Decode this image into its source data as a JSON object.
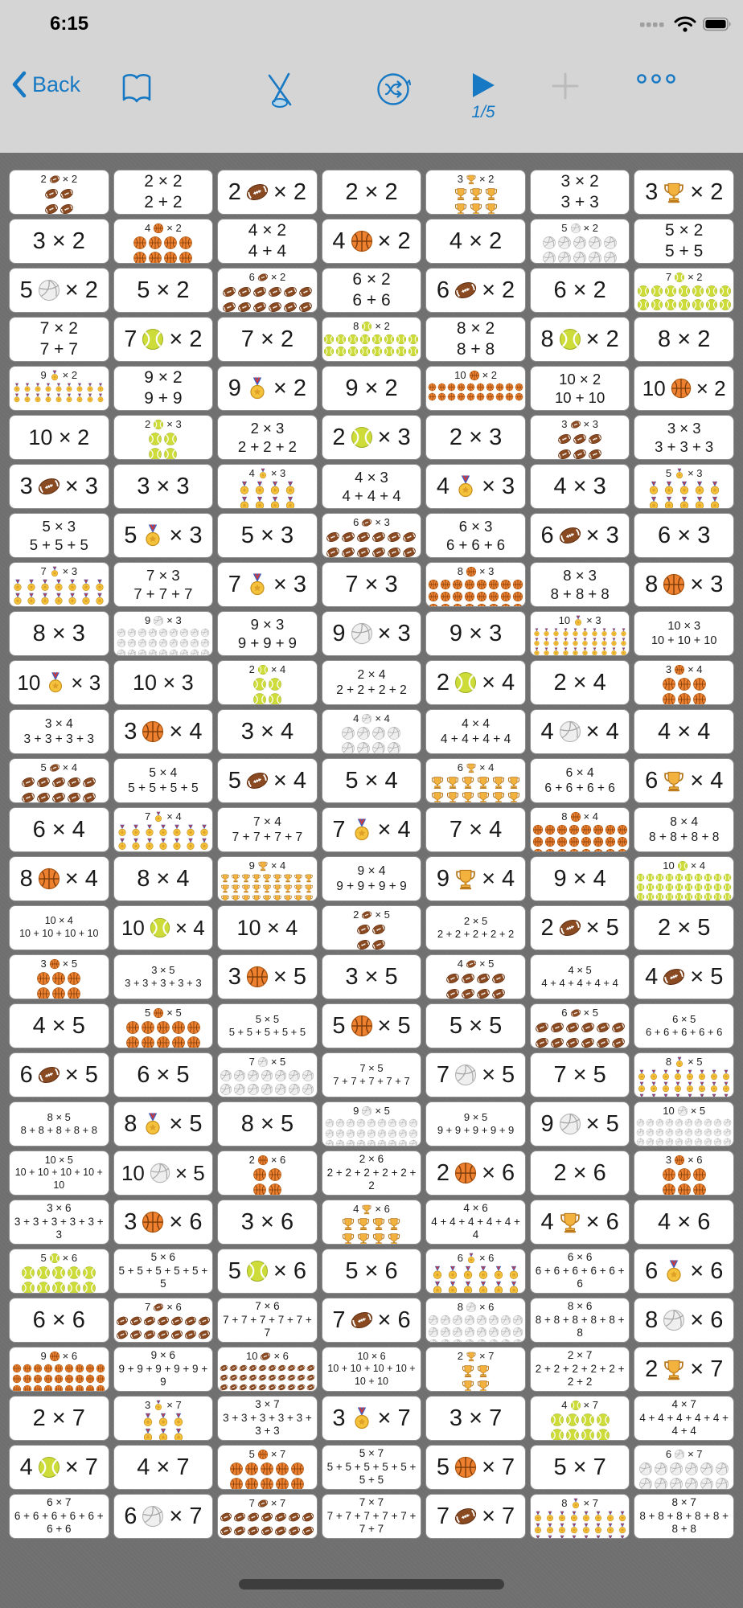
{
  "colors": {
    "accent": "#1779c4",
    "bar_bg": "#d5d5d5",
    "page_bg": "#6f6f6f",
    "card_bg": "#ffffff",
    "disabled": "#bcbcbc"
  },
  "status_bar": {
    "time": "6:15",
    "icons": [
      "cellular-signal",
      "wifi",
      "battery"
    ]
  },
  "toolbar": {
    "back_label": "Back",
    "page_indicator": "1/5",
    "icons": [
      "back-chevron",
      "book",
      "no-draw-pencil",
      "shuffle",
      "play",
      "plus",
      "ellipsis"
    ]
  },
  "grid": {
    "columns": 7,
    "cards": [
      {
        "t": "p",
        "n": "2",
        "x": "× 2",
        "e": "football",
        "c": 2,
        "r": 2
      },
      {
        "t": "a",
        "p": "2 × 2",
        "s": "2 + 2"
      },
      {
        "t": "e",
        "n": "2",
        "x": "× 2",
        "e": "football"
      },
      {
        "t": "n",
        "p": "2 × 2"
      },
      {
        "t": "p",
        "n": "3",
        "x": "× 2",
        "e": "trophy",
        "c": 3,
        "r": 2
      },
      {
        "t": "a",
        "p": "3 × 2",
        "s": "3 + 3"
      },
      {
        "t": "e",
        "n": "3",
        "x": "× 2",
        "e": "trophy"
      },
      {
        "t": "n",
        "p": "3 × 2"
      },
      {
        "t": "p",
        "n": "4",
        "x": "× 2",
        "e": "basketball",
        "c": 4,
        "r": 2
      },
      {
        "t": "a",
        "p": "4 × 2",
        "s": "4 + 4"
      },
      {
        "t": "e",
        "n": "4",
        "x": "× 2",
        "e": "basketball"
      },
      {
        "t": "n",
        "p": "4 × 2"
      },
      {
        "t": "p",
        "n": "5",
        "x": "× 2",
        "e": "volleyball",
        "c": 5,
        "r": 2
      },
      {
        "t": "a",
        "p": "5 × 2",
        "s": "5 + 5"
      },
      {
        "t": "e",
        "n": "5",
        "x": "× 2",
        "e": "volleyball"
      },
      {
        "t": "n",
        "p": "5 × 2"
      },
      {
        "t": "p",
        "n": "6",
        "x": "× 2",
        "e": "football",
        "c": 6,
        "r": 2
      },
      {
        "t": "a",
        "p": "6 × 2",
        "s": "6 + 6"
      },
      {
        "t": "e",
        "n": "6",
        "x": "× 2",
        "e": "football"
      },
      {
        "t": "n",
        "p": "6 × 2"
      },
      {
        "t": "p",
        "n": "7",
        "x": "× 2",
        "e": "tennis",
        "c": 7,
        "r": 2
      },
      {
        "t": "a",
        "p": "7 × 2",
        "s": "7 + 7"
      },
      {
        "t": "e",
        "n": "7",
        "x": "× 2",
        "e": "tennis"
      },
      {
        "t": "n",
        "p": "7 × 2"
      },
      {
        "t": "p",
        "n": "8",
        "x": "× 2",
        "e": "tennis",
        "c": 8,
        "r": 2
      },
      {
        "t": "a",
        "p": "8 × 2",
        "s": "8 + 8"
      },
      {
        "t": "e",
        "n": "8",
        "x": "× 2",
        "e": "tennis"
      },
      {
        "t": "n",
        "p": "8 × 2"
      },
      {
        "t": "p",
        "n": "9",
        "x": "× 2",
        "e": "medal",
        "c": 9,
        "r": 2
      },
      {
        "t": "a",
        "p": "9 × 2",
        "s": "9 + 9"
      },
      {
        "t": "e",
        "n": "9",
        "x": "× 2",
        "e": "medal"
      },
      {
        "t": "n",
        "p": "9 × 2"
      },
      {
        "t": "p",
        "n": "10",
        "x": "× 2",
        "e": "basketball",
        "c": 10,
        "r": 2
      },
      {
        "t": "a",
        "p": "10 × 2",
        "s": "10 + 10"
      },
      {
        "t": "e",
        "n": "10",
        "x": "× 2",
        "e": "basketball"
      },
      {
        "t": "n",
        "p": "10 × 2"
      },
      {
        "t": "p",
        "n": "2",
        "x": "× 3",
        "e": "tennis",
        "c": 2,
        "r": 3
      },
      {
        "t": "a",
        "p": "2 × 3",
        "s": "2 + 2 + 2"
      },
      {
        "t": "e",
        "n": "2",
        "x": "× 3",
        "e": "tennis"
      },
      {
        "t": "n",
        "p": "2 × 3"
      },
      {
        "t": "p",
        "n": "3",
        "x": "× 3",
        "e": "football",
        "c": 3,
        "r": 3
      },
      {
        "t": "a",
        "p": "3 × 3",
        "s": "3 + 3 + 3"
      },
      {
        "t": "e",
        "n": "3",
        "x": "× 3",
        "e": "football"
      },
      {
        "t": "n",
        "p": "3 × 3"
      },
      {
        "t": "p",
        "n": "4",
        "x": "× 3",
        "e": "medal",
        "c": 4,
        "r": 3
      },
      {
        "t": "a",
        "p": "4 × 3",
        "s": "4 + 4 + 4"
      },
      {
        "t": "e",
        "n": "4",
        "x": "× 3",
        "e": "medal"
      },
      {
        "t": "n",
        "p": "4 × 3"
      },
      {
        "t": "p",
        "n": "5",
        "x": "× 3",
        "e": "medal",
        "c": 5,
        "r": 3
      },
      {
        "t": "a",
        "p": "5 × 3",
        "s": "5 + 5 + 5"
      },
      {
        "t": "e",
        "n": "5",
        "x": "× 3",
        "e": "medal"
      },
      {
        "t": "n",
        "p": "5 × 3"
      },
      {
        "t": "p",
        "n": "6",
        "x": "× 3",
        "e": "football",
        "c": 6,
        "r": 3
      },
      {
        "t": "a",
        "p": "6 × 3",
        "s": "6 + 6 + 6"
      },
      {
        "t": "e",
        "n": "6",
        "x": "× 3",
        "e": "football"
      },
      {
        "t": "n",
        "p": "6 × 3"
      },
      {
        "t": "p",
        "n": "7",
        "x": "× 3",
        "e": "medal",
        "c": 7,
        "r": 3
      },
      {
        "t": "a",
        "p": "7 × 3",
        "s": "7 + 7 + 7"
      },
      {
        "t": "e",
        "n": "7",
        "x": "× 3",
        "e": "medal"
      },
      {
        "t": "n",
        "p": "7 × 3"
      },
      {
        "t": "p",
        "n": "8",
        "x": "× 3",
        "e": "basketball",
        "c": 8,
        "r": 3
      },
      {
        "t": "a",
        "p": "8 × 3",
        "s": "8 + 8 + 8"
      },
      {
        "t": "e",
        "n": "8",
        "x": "× 3",
        "e": "basketball"
      },
      {
        "t": "n",
        "p": "8 × 3"
      },
      {
        "t": "p",
        "n": "9",
        "x": "× 3",
        "e": "volleyball",
        "c": 9,
        "r": 3
      },
      {
        "t": "a",
        "p": "9 × 3",
        "s": "9 + 9 + 9"
      },
      {
        "t": "e",
        "n": "9",
        "x": "× 3",
        "e": "volleyball"
      },
      {
        "t": "n",
        "p": "9 × 3"
      },
      {
        "t": "p",
        "n": "10",
        "x": "× 3",
        "e": "medal",
        "c": 10,
        "r": 3
      },
      {
        "t": "a",
        "p": "10 × 3",
        "s": "10 + 10 + 10"
      },
      {
        "t": "e",
        "n": "10",
        "x": "× 3",
        "e": "medal"
      },
      {
        "t": "n",
        "p": "10 × 3"
      },
      {
        "t": "p",
        "n": "2",
        "x": "× 4",
        "e": "tennis",
        "c": 2,
        "r": 4
      },
      {
        "t": "a",
        "p": "2 × 4",
        "s": "2 + 2 + 2 + 2"
      },
      {
        "t": "e",
        "n": "2",
        "x": "× 4",
        "e": "tennis"
      },
      {
        "t": "n",
        "p": "2 × 4"
      },
      {
        "t": "p",
        "n": "3",
        "x": "× 4",
        "e": "basketball",
        "c": 3,
        "r": 4
      },
      {
        "t": "a",
        "p": "3 × 4",
        "s": "3 + 3 + 3 + 3"
      },
      {
        "t": "e",
        "n": "3",
        "x": "× 4",
        "e": "basketball"
      },
      {
        "t": "n",
        "p": "3 × 4"
      },
      {
        "t": "p",
        "n": "4",
        "x": "× 4",
        "e": "volleyball",
        "c": 4,
        "r": 4
      },
      {
        "t": "a",
        "p": "4 × 4",
        "s": "4 + 4 + 4 + 4"
      },
      {
        "t": "e",
        "n": "4",
        "x": "× 4",
        "e": "volleyball"
      },
      {
        "t": "n",
        "p": "4 × 4"
      },
      {
        "t": "p",
        "n": "5",
        "x": "× 4",
        "e": "football",
        "c": 5,
        "r": 4
      },
      {
        "t": "a",
        "p": "5 × 4",
        "s": "5 + 5 + 5 + 5"
      },
      {
        "t": "e",
        "n": "5",
        "x": "× 4",
        "e": "football"
      },
      {
        "t": "n",
        "p": "5 × 4"
      },
      {
        "t": "p",
        "n": "6",
        "x": "× 4",
        "e": "trophy",
        "c": 6,
        "r": 4
      },
      {
        "t": "a",
        "p": "6 × 4",
        "s": "6 + 6 + 6 + 6"
      },
      {
        "t": "e",
        "n": "6",
        "x": "× 4",
        "e": "trophy"
      },
      {
        "t": "n",
        "p": "6 × 4"
      },
      {
        "t": "p",
        "n": "7",
        "x": "× 4",
        "e": "medal",
        "c": 7,
        "r": 4
      },
      {
        "t": "a",
        "p": "7 × 4",
        "s": "7 + 7 + 7 + 7"
      },
      {
        "t": "e",
        "n": "7",
        "x": "× 4",
        "e": "medal"
      },
      {
        "t": "n",
        "p": "7 × 4"
      },
      {
        "t": "p",
        "n": "8",
        "x": "× 4",
        "e": "basketball",
        "c": 8,
        "r": 4
      },
      {
        "t": "a",
        "p": "8 × 4",
        "s": "8 + 8 + 8 + 8"
      },
      {
        "t": "e",
        "n": "8",
        "x": "× 4",
        "e": "basketball"
      },
      {
        "t": "n",
        "p": "8 × 4"
      },
      {
        "t": "p",
        "n": "9",
        "x": "× 4",
        "e": "trophy",
        "c": 9,
        "r": 4
      },
      {
        "t": "a",
        "p": "9 × 4",
        "s": "9 + 9 + 9 + 9"
      },
      {
        "t": "e",
        "n": "9",
        "x": "× 4",
        "e": "trophy"
      },
      {
        "t": "n",
        "p": "9 × 4"
      },
      {
        "t": "p",
        "n": "10",
        "x": "× 4",
        "e": "tennis",
        "c": 10,
        "r": 4
      },
      {
        "t": "a",
        "p": "10 × 4",
        "s": "10 + 10 + 10 + 10"
      },
      {
        "t": "e",
        "n": "10",
        "x": "× 4",
        "e": "tennis"
      },
      {
        "t": "n",
        "p": "10 × 4"
      },
      {
        "t": "p",
        "n": "2",
        "x": "× 5",
        "e": "football",
        "c": 2,
        "r": 5
      },
      {
        "t": "a",
        "p": "2 × 5",
        "s": "2 + 2 + 2 + 2 + 2"
      },
      {
        "t": "e",
        "n": "2",
        "x": "× 5",
        "e": "football"
      },
      {
        "t": "n",
        "p": "2 × 5"
      },
      {
        "t": "p",
        "n": "3",
        "x": "× 5",
        "e": "basketball",
        "c": 3,
        "r": 5
      },
      {
        "t": "a",
        "p": "3 × 5",
        "s": "3 + 3 + 3 + 3 + 3"
      },
      {
        "t": "e",
        "n": "3",
        "x": "× 5",
        "e": "basketball"
      },
      {
        "t": "n",
        "p": "3 × 5"
      },
      {
        "t": "p",
        "n": "4",
        "x": "× 5",
        "e": "football",
        "c": 4,
        "r": 5
      },
      {
        "t": "a",
        "p": "4 × 5",
        "s": "4 + 4 + 4 + 4 + 4"
      },
      {
        "t": "e",
        "n": "4",
        "x": "× 5",
        "e": "football"
      },
      {
        "t": "n",
        "p": "4 × 5"
      },
      {
        "t": "p",
        "n": "5",
        "x": "× 5",
        "e": "basketball",
        "c": 5,
        "r": 5
      },
      {
        "t": "a",
        "p": "5 × 5",
        "s": "5 + 5 + 5 + 5 + 5"
      },
      {
        "t": "e",
        "n": "5",
        "x": "× 5",
        "e": "basketball"
      },
      {
        "t": "n",
        "p": "5 × 5"
      },
      {
        "t": "p",
        "n": "6",
        "x": "× 5",
        "e": "football",
        "c": 6,
        "r": 5
      },
      {
        "t": "a",
        "p": "6 × 5",
        "s": "6 + 6 + 6 + 6 + 6"
      },
      {
        "t": "e",
        "n": "6",
        "x": "× 5",
        "e": "football"
      },
      {
        "t": "n",
        "p": "6 × 5"
      },
      {
        "t": "p",
        "n": "7",
        "x": "× 5",
        "e": "volleyball",
        "c": 7,
        "r": 5
      },
      {
        "t": "a",
        "p": "7 × 5",
        "s": "7 + 7 + 7 + 7 + 7"
      },
      {
        "t": "e",
        "n": "7",
        "x": "× 5",
        "e": "volleyball"
      },
      {
        "t": "n",
        "p": "7 × 5"
      },
      {
        "t": "p",
        "n": "8",
        "x": "× 5",
        "e": "medal",
        "c": 8,
        "r": 5
      },
      {
        "t": "a",
        "p": "8 × 5",
        "s": "8 + 8 + 8 + 8 + 8"
      },
      {
        "t": "e",
        "n": "8",
        "x": "× 5",
        "e": "medal"
      },
      {
        "t": "n",
        "p": "8 × 5"
      },
      {
        "t": "p",
        "n": "9",
        "x": "× 5",
        "e": "volleyball",
        "c": 9,
        "r": 5
      },
      {
        "t": "a",
        "p": "9 × 5",
        "s": "9 + 9 + 9 + 9 + 9"
      },
      {
        "t": "e",
        "n": "9",
        "x": "× 5",
        "e": "volleyball"
      },
      {
        "t": "p",
        "n": "10",
        "x": "× 5",
        "e": "volleyball",
        "c": 10,
        "r": 5
      },
      {
        "t": "a",
        "p": "10 × 5",
        "s": "10 + 10 + 10 + 10 + 10"
      },
      {
        "t": "e",
        "n": "10",
        "x": "× 5",
        "e": "volleyball"
      },
      {
        "t": "p",
        "n": "2",
        "x": "× 6",
        "e": "basketball",
        "c": 2,
        "r": 6
      },
      {
        "t": "a",
        "p": "2 × 6",
        "s": "2 + 2 + 2 + 2 + 2 + 2"
      },
      {
        "t": "e",
        "n": "2",
        "x": "× 6",
        "e": "basketball"
      },
      {
        "t": "n",
        "p": "2 × 6"
      },
      {
        "t": "p",
        "n": "3",
        "x": "× 6",
        "e": "basketball",
        "c": 3,
        "r": 6
      },
      {
        "t": "a",
        "p": "3 × 6",
        "s": "3 + 3 + 3 + 3 + 3 + 3"
      },
      {
        "t": "e",
        "n": "3",
        "x": "× 6",
        "e": "basketball"
      },
      {
        "t": "n",
        "p": "3 × 6"
      },
      {
        "t": "p",
        "n": "4",
        "x": "× 6",
        "e": "trophy",
        "c": 4,
        "r": 6
      },
      {
        "t": "a",
        "p": "4 × 6",
        "s": "4 + 4 + 4 + 4 + 4 + 4"
      },
      {
        "t": "e",
        "n": "4",
        "x": "× 6",
        "e": "trophy"
      },
      {
        "t": "n",
        "p": "4 × 6"
      },
      {
        "t": "p",
        "n": "5",
        "x": "× 6",
        "e": "tennis",
        "c": 5,
        "r": 6
      },
      {
        "t": "a",
        "p": "5 × 6",
        "s": "5 + 5 + 5 + 5 + 5 + 5"
      },
      {
        "t": "e",
        "n": "5",
        "x": "× 6",
        "e": "tennis"
      },
      {
        "t": "n",
        "p": "5 × 6"
      },
      {
        "t": "p",
        "n": "6",
        "x": "× 6",
        "e": "medal",
        "c": 6,
        "r": 6
      },
      {
        "t": "a",
        "p": "6 × 6",
        "s": "6 + 6 + 6 + 6 + 6 + 6"
      },
      {
        "t": "e",
        "n": "6",
        "x": "× 6",
        "e": "medal"
      },
      {
        "t": "n",
        "p": "6 × 6"
      },
      {
        "t": "p",
        "n": "7",
        "x": "× 6",
        "e": "football",
        "c": 7,
        "r": 6
      },
      {
        "t": "a",
        "p": "7 × 6",
        "s": "7 + 7 + 7 + 7 + 7 + 7"
      },
      {
        "t": "e",
        "n": "7",
        "x": "× 6",
        "e": "football"
      },
      {
        "t": "p",
        "n": "8",
        "x": "× 6",
        "e": "volleyball",
        "c": 8,
        "r": 6
      },
      {
        "t": "a",
        "p": "8 × 6",
        "s": "8 + 8 + 8 + 8 + 8 + 8"
      },
      {
        "t": "e",
        "n": "8",
        "x": "× 6",
        "e": "volleyball"
      },
      {
        "t": "p",
        "n": "9",
        "x": "× 6",
        "e": "basketball",
        "c": 9,
        "r": 6
      },
      {
        "t": "a",
        "p": "9 × 6",
        "s": "9 + 9 + 9 + 9 + 9 + 9"
      },
      {
        "t": "p",
        "n": "10",
        "x": "× 6",
        "e": "football",
        "c": 10,
        "r": 6
      },
      {
        "t": "a",
        "p": "10 × 6",
        "s": "10 + 10 + 10 + 10 + 10 + 10"
      },
      {
        "t": "p",
        "n": "2",
        "x": "× 7",
        "e": "trophy",
        "c": 2,
        "r": 7
      },
      {
        "t": "a",
        "p": "2 × 7",
        "s": "2 + 2 + 2 + 2 + 2 + 2 + 2"
      },
      {
        "t": "e",
        "n": "2",
        "x": "× 7",
        "e": "trophy"
      },
      {
        "t": "n",
        "p": "2 × 7"
      },
      {
        "t": "p",
        "n": "3",
        "x": "× 7",
        "e": "medal",
        "c": 3,
        "r": 7
      },
      {
        "t": "a",
        "p": "3 × 7",
        "s": "3 + 3 + 3 + 3 + 3 + 3 + 3"
      },
      {
        "t": "e",
        "n": "3",
        "x": "× 7",
        "e": "medal"
      },
      {
        "t": "n",
        "p": "3 × 7"
      },
      {
        "t": "p",
        "n": "4",
        "x": "× 7",
        "e": "tennis",
        "c": 4,
        "r": 7
      },
      {
        "t": "a",
        "p": "4 × 7",
        "s": "4 + 4 + 4 + 4 + 4 + 4 + 4"
      },
      {
        "t": "e",
        "n": "4",
        "x": "× 7",
        "e": "tennis"
      },
      {
        "t": "n",
        "p": "4 × 7"
      },
      {
        "t": "p",
        "n": "5",
        "x": "× 7",
        "e": "basketball",
        "c": 5,
        "r": 7
      },
      {
        "t": "a",
        "p": "5 × 7",
        "s": "5 + 5 + 5 + 5 + 5 + 5 + 5"
      },
      {
        "t": "e",
        "n": "5",
        "x": "× 7",
        "e": "basketball"
      },
      {
        "t": "n",
        "p": "5 × 7"
      },
      {
        "t": "p",
        "n": "6",
        "x": "× 7",
        "e": "volleyball",
        "c": 6,
        "r": 7
      },
      {
        "t": "a",
        "p": "6 × 7",
        "s": "6 + 6 + 6 + 6 + 6 + 6 + 6"
      },
      {
        "t": "e",
        "n": "6",
        "x": "× 7",
        "e": "volleyball"
      },
      {
        "t": "p",
        "n": "7",
        "x": "× 7",
        "e": "football",
        "c": 7,
        "r": 7
      },
      {
        "t": "a",
        "p": "7 × 7",
        "s": "7 + 7 + 7 + 7 + 7 + 7 + 7"
      },
      {
        "t": "e",
        "n": "7",
        "x": "× 7",
        "e": "football"
      },
      {
        "t": "p",
        "n": "8",
        "x": "× 7",
        "e": "medal",
        "c": 8,
        "r": 7
      },
      {
        "t": "a",
        "p": "8 × 7",
        "s": "8 + 8 + 8 + 8 + 8 + 8 + 8"
      }
    ]
  }
}
